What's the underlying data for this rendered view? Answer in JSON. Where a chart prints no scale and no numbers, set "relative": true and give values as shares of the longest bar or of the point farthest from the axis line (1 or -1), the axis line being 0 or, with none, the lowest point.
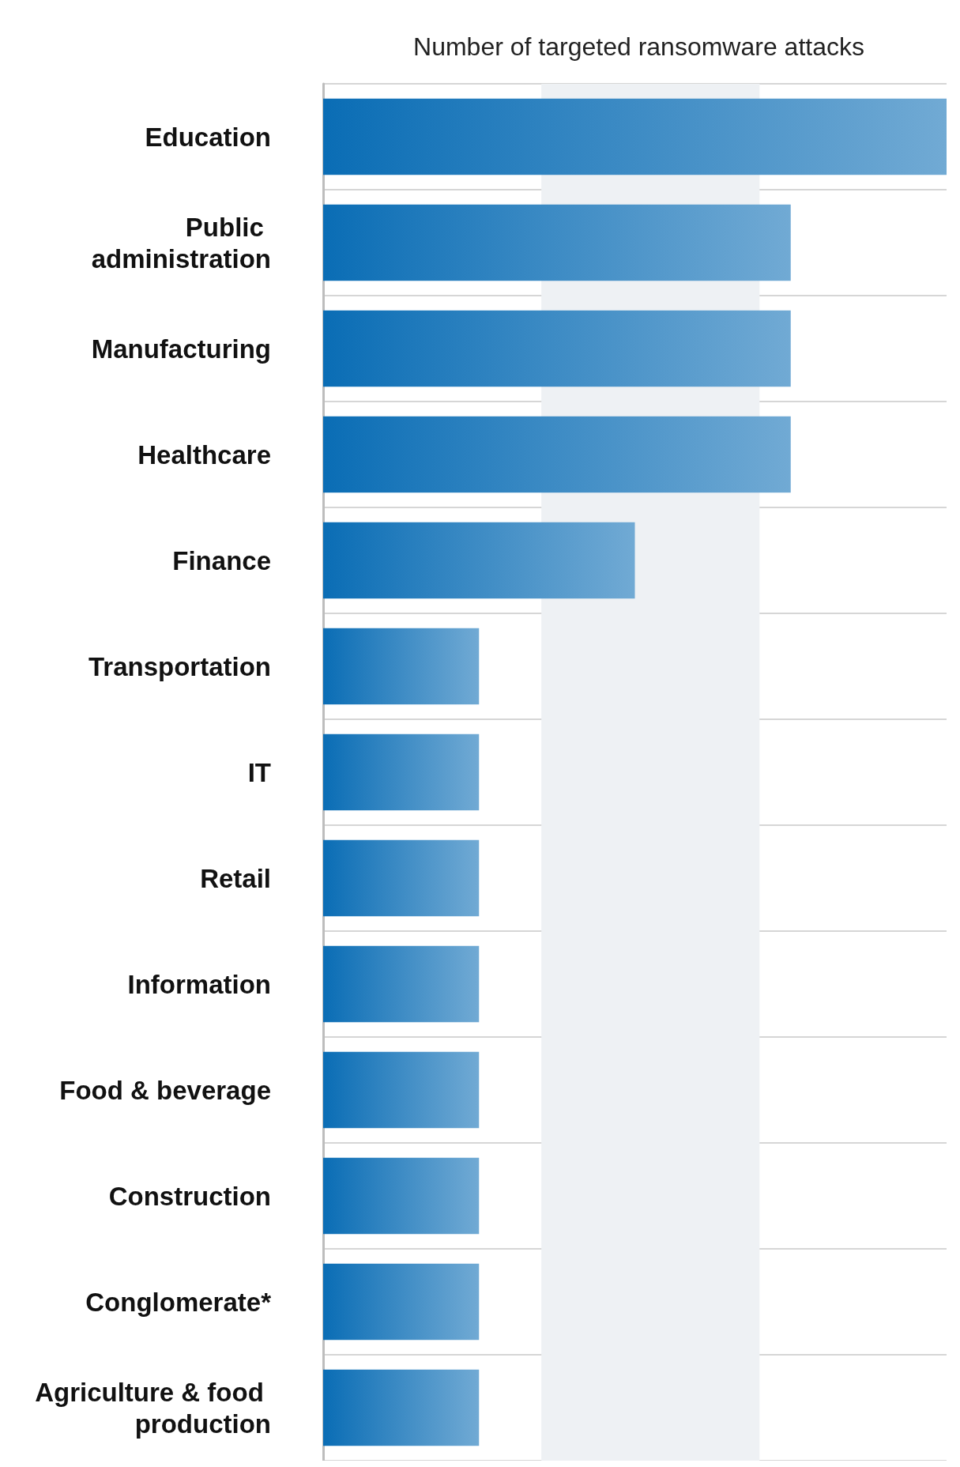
{
  "chart_data": {
    "type": "bar",
    "orientation": "horizontal",
    "relative": true,
    "title": "Number of targeted ransomware attacks",
    "categories": [
      "Education",
      "Public administration",
      "Manufacturing",
      "Healthcare",
      "Finance",
      "Transportation",
      "IT",
      "Retail",
      "Information",
      "Food & beverage",
      "Construction",
      "Conglomerate*",
      "Agriculture & food production"
    ],
    "values": [
      1,
      0.75,
      0.75,
      0.75,
      0.5,
      0.25,
      0.25,
      0.25,
      0.25,
      0.25,
      0.25,
      0.25,
      0.25
    ],
    "color": "#0a6db5",
    "bands": [
      {
        "axis": "x",
        "from": 0.35,
        "to": 0.7,
        "color": "#eef1f4"
      }
    ],
    "grid": "y"
  }
}
